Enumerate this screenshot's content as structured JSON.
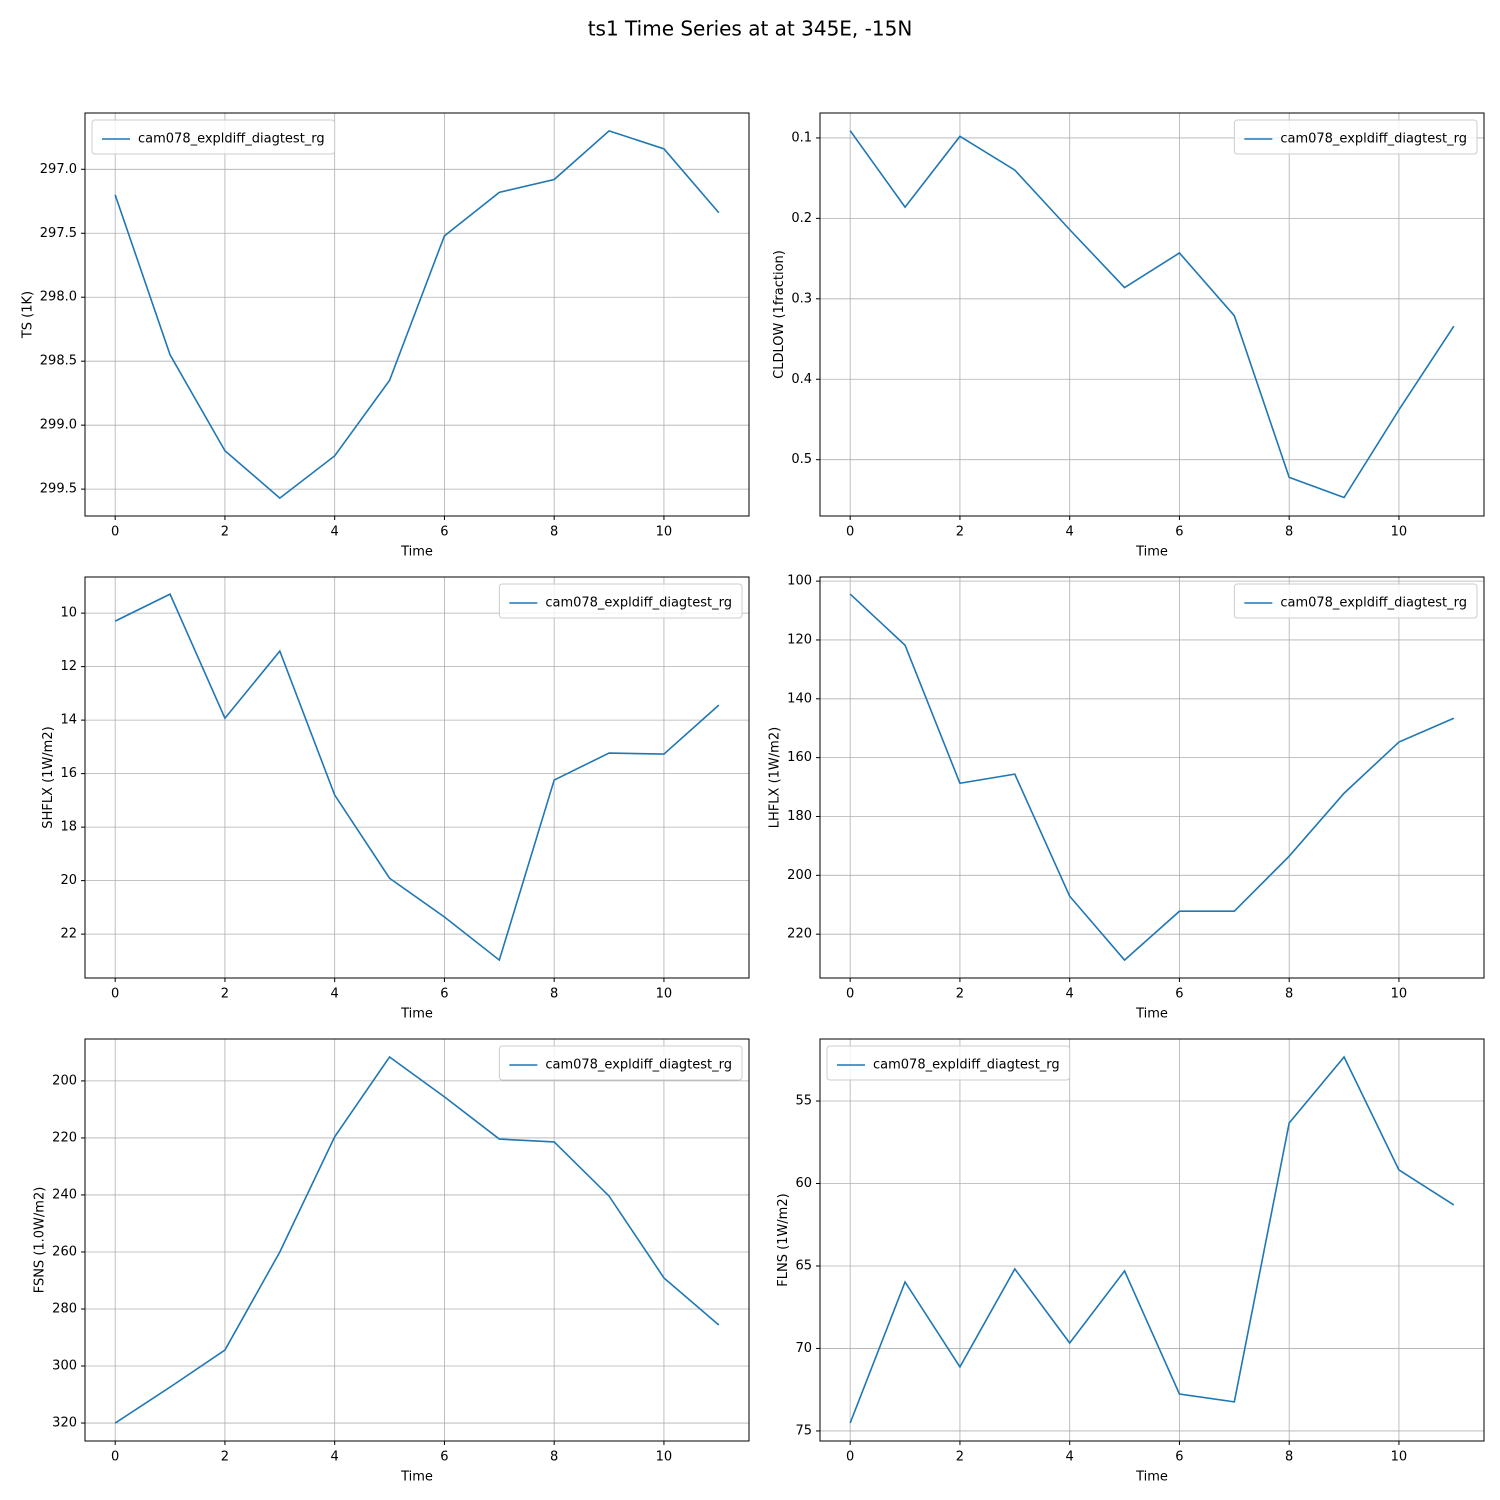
{
  "title": "ts1 Time Series at at 345E, -15N",
  "chart_data": [
    {
      "type": "line",
      "xlabel": "Time",
      "ylabel": "TS (1K)",
      "x": [
        0,
        1,
        2,
        3,
        4,
        5,
        6,
        7,
        8,
        9,
        10,
        11
      ],
      "series": [
        {
          "name": "cam078_expldiff_diagtest_rg",
          "color": "#1f77b4",
          "values": [
            297.2,
            298.45,
            299.2,
            299.57,
            299.24,
            298.65,
            297.52,
            297.18,
            297.08,
            296.7,
            296.84,
            297.34
          ]
        }
      ],
      "xlim": [
        -0.55,
        11.55
      ],
      "xticks": [
        0,
        2,
        4,
        6,
        8,
        10
      ],
      "ylim": [
        299.71,
        296.56
      ],
      "yticks": [
        {
          "value": 297,
          "label": "297.0"
        },
        297.5,
        {
          "value": 298,
          "label": "298.0"
        },
        298.5,
        {
          "value": 299,
          "label": "299.0"
        },
        299.5
      ],
      "grid": true,
      "legend": "upper-left"
    },
    {
      "type": "line",
      "xlabel": "Time",
      "ylabel": "CLDLOW (1fraction)",
      "x": [
        0,
        1,
        2,
        3,
        4,
        5,
        6,
        7,
        8,
        9,
        10,
        11
      ],
      "series": [
        {
          "name": "cam078_expldiff_diagtest_rg",
          "color": "#1f77b4",
          "values": [
            0.091,
            0.186,
            0.098,
            0.14,
            0.214,
            0.286,
            0.243,
            0.321,
            0.522,
            0.547,
            0.438,
            0.334
          ]
        }
      ],
      "xlim": [
        -0.55,
        11.55
      ],
      "xticks": [
        0,
        2,
        4,
        6,
        8,
        10
      ],
      "ylim": [
        0.57,
        0.069
      ],
      "yticks": [
        0.1,
        0.2,
        0.3,
        0.4,
        0.5
      ],
      "grid": true,
      "legend": "upper-right"
    },
    {
      "type": "line",
      "xlabel": "Time",
      "ylabel": "SHFLX (1W/m2)",
      "x": [
        0,
        1,
        2,
        3,
        4,
        5,
        6,
        7,
        8,
        9,
        10,
        11
      ],
      "series": [
        {
          "name": "cam078_expldiff_diagtest_rg",
          "color": "#1f77b4",
          "values": [
            10.3,
            9.29,
            13.93,
            11.42,
            16.8,
            19.91,
            21.36,
            22.97,
            16.24,
            15.23,
            15.27,
            13.44
          ]
        }
      ],
      "xlim": [
        -0.55,
        11.55
      ],
      "xticks": [
        0,
        2,
        4,
        6,
        8,
        10
      ],
      "ylim": [
        23.64,
        8.65
      ],
      "yticks": [
        10,
        12,
        14,
        16,
        18,
        20,
        22
      ],
      "grid": true,
      "legend": "upper-right"
    },
    {
      "type": "line",
      "xlabel": "Time",
      "ylabel": "LHFLX (1W/m2)",
      "x": [
        0,
        1,
        2,
        3,
        4,
        5,
        6,
        7,
        8,
        9,
        10,
        11
      ],
      "series": [
        {
          "name": "cam078_expldiff_diagtest_rg",
          "color": "#1f77b4",
          "values": [
            104.4,
            121.8,
            168.7,
            165.6,
            207.1,
            228.8,
            212.2,
            212.2,
            193.5,
            172.1,
            154.7,
            146.6
          ]
        }
      ],
      "xlim": [
        -0.55,
        11.55
      ],
      "xticks": [
        0,
        2,
        4,
        6,
        8,
        10
      ],
      "ylim": [
        234.9,
        98.6
      ],
      "yticks": [
        100,
        120,
        140,
        160,
        180,
        200,
        220
      ],
      "grid": true,
      "legend": "upper-right"
    },
    {
      "type": "line",
      "xlabel": "Time",
      "ylabel": "FSNS (1.0W/m2)",
      "x": [
        0,
        1,
        2,
        3,
        4,
        5,
        6,
        7,
        8,
        9,
        10,
        11
      ],
      "series": [
        {
          "name": "cam078_expldiff_diagtest_rg",
          "color": "#1f77b4",
          "values": [
            320.0,
            307.4,
            294.4,
            260.0,
            219.6,
            191.6,
            205.6,
            220.4,
            221.4,
            240.4,
            269.1,
            285.6
          ]
        }
      ],
      "xlim": [
        -0.55,
        11.55
      ],
      "xticks": [
        0,
        2,
        4,
        6,
        8,
        10
      ],
      "ylim": [
        326.3,
        185.3
      ],
      "yticks": [
        200,
        220,
        240,
        260,
        280,
        300,
        320
      ],
      "grid": true,
      "legend": "upper-right"
    },
    {
      "type": "line",
      "xlabel": "Time",
      "ylabel": "FLNS (1W/m2)",
      "x": [
        0,
        1,
        2,
        3,
        4,
        5,
        6,
        7,
        8,
        9,
        10,
        11
      ],
      "series": [
        {
          "name": "cam078_expldiff_diagtest_rg",
          "color": "#1f77b4",
          "values": [
            74.52,
            65.97,
            71.12,
            65.18,
            69.67,
            65.3,
            72.76,
            73.24,
            56.33,
            52.33,
            59.18,
            61.3
          ]
        }
      ],
      "xlim": [
        -0.55,
        11.55
      ],
      "xticks": [
        0,
        2,
        4,
        6,
        8,
        10
      ],
      "ylim": [
        75.61,
        51.24
      ],
      "yticks": [
        55,
        60,
        65,
        70,
        75
      ],
      "grid": true,
      "legend": "upper-left"
    }
  ]
}
